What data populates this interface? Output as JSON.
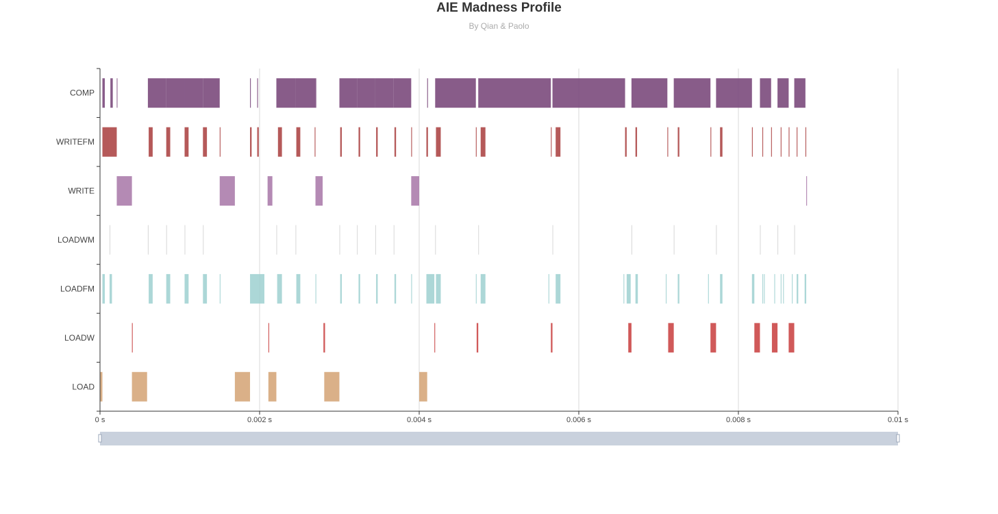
{
  "title": "AIE Madness Profile",
  "subtitle": "By Qian & Paolo",
  "chart_data": {
    "type": "timeline",
    "title": "AIE Madness Profile",
    "subtitle": "By Qian & Paolo",
    "categories": [
      "LOAD",
      "LOADW",
      "LOADFM",
      "LOADWM",
      "WRITE",
      "WRITEFM",
      "COMP"
    ],
    "x_ticks": [
      {
        "value": 0,
        "label": "0 s"
      },
      {
        "value": 0.002,
        "label": "0.002 s"
      },
      {
        "value": 0.004,
        "label": "0.004 s"
      },
      {
        "value": 0.006,
        "label": "0.006 s"
      },
      {
        "value": 0.008,
        "label": "0.008 s"
      },
      {
        "value": 0.01,
        "label": "0.01 s"
      }
    ],
    "xlim": [
      0,
      0.01
    ],
    "grid": "vertical",
    "colors": {
      "COMP": "#7b4a7c",
      "WRITEFM": "#a83c3c",
      "WRITE": "#a775a7",
      "LOADWM": "#d0d0d0",
      "LOADFM": "#9ed0d0",
      "LOADW": "#c83c3c",
      "LOAD": "#d4a273"
    },
    "series": [
      {
        "category": "COMP",
        "intervals": [
          [
            3e-05,
            6e-05
          ],
          [
            0.00013,
            0.00016
          ],
          [
            0.00021,
            0.000215
          ],
          [
            0.0006,
            0.00083
          ],
          [
            0.00083,
            0.00106
          ],
          [
            0.00106,
            0.00129
          ],
          [
            0.00129,
            0.0015
          ],
          [
            0.00188,
            0.00189
          ],
          [
            0.00197,
            0.00198
          ],
          [
            0.00221,
            0.00245
          ],
          [
            0.00245,
            0.0027
          ],
          [
            0.0027,
            0.00271
          ],
          [
            0.003,
            0.00322
          ],
          [
            0.00322,
            0.00345
          ],
          [
            0.00345,
            0.00368
          ],
          [
            0.00368,
            0.0039
          ],
          [
            0.0041,
            0.00411
          ],
          [
            0.0042,
            0.00471
          ],
          [
            0.00474,
            0.00565
          ],
          [
            0.00567,
            0.00658
          ],
          [
            0.00666,
            0.00711
          ],
          [
            0.00719,
            0.00765
          ],
          [
            0.00772,
            0.00817
          ],
          [
            0.00827,
            0.00841
          ],
          [
            0.00849,
            0.00863
          ],
          [
            0.0087,
            0.00884
          ]
        ]
      },
      {
        "category": "WRITEFM",
        "intervals": [
          [
            3e-05,
            0.00012
          ],
          [
            0.00012,
            0.00021
          ],
          [
            0.00061,
            0.00066
          ],
          [
            0.00083,
            0.00088
          ],
          [
            0.00106,
            0.00111
          ],
          [
            0.00129,
            0.00134
          ],
          [
            0.0015,
            0.00151
          ],
          [
            0.00188,
            0.0019
          ],
          [
            0.00197,
            0.00199
          ],
          [
            0.00223,
            0.00228
          ],
          [
            0.00246,
            0.00251
          ],
          [
            0.00269,
            0.0027
          ],
          [
            0.00301,
            0.00303
          ],
          [
            0.00324,
            0.00326
          ],
          [
            0.00346,
            0.00348
          ],
          [
            0.00369,
            0.00371
          ],
          [
            0.0039,
            0.00391
          ],
          [
            0.00409,
            0.00411
          ],
          [
            0.00421,
            0.00427
          ],
          [
            0.00471,
            0.00472
          ],
          [
            0.00477,
            0.00483
          ],
          [
            0.00565,
            0.00566
          ],
          [
            0.00571,
            0.00577
          ],
          [
            0.00658,
            0.0066
          ],
          [
            0.00671,
            0.00673
          ],
          [
            0.00711,
            0.00712
          ],
          [
            0.00724,
            0.00726
          ],
          [
            0.00765,
            0.00766
          ],
          [
            0.00777,
            0.0078
          ],
          [
            0.00817,
            0.00818
          ],
          [
            0.0083,
            0.00831
          ],
          [
            0.00841,
            0.00842
          ],
          [
            0.00853,
            0.00854
          ],
          [
            0.00863,
            0.00864
          ],
          [
            0.00873,
            0.00874
          ],
          [
            0.00884,
            0.00885
          ]
        ]
      },
      {
        "category": "WRITE",
        "intervals": [
          [
            0.00021,
            0.0004
          ],
          [
            0.0015,
            0.00169
          ],
          [
            0.0021,
            0.00216
          ],
          [
            0.0027,
            0.00279
          ],
          [
            0.0039,
            0.004
          ],
          [
            0.00885,
            0.00886
          ]
        ]
      },
      {
        "category": "LOADWM",
        "intervals": [
          [
            0.00012,
            0.000125
          ],
          [
            0.0006,
            0.000605
          ],
          [
            0.00083,
            0.000835
          ],
          [
            0.00106,
            0.001065
          ],
          [
            0.00129,
            0.001295
          ],
          [
            0.00221,
            0.002215
          ],
          [
            0.00245,
            0.002455
          ],
          [
            0.003,
            0.003005
          ],
          [
            0.00322,
            0.003225
          ],
          [
            0.00345,
            0.003455
          ],
          [
            0.00368,
            0.003685
          ],
          [
            0.0042,
            0.004205
          ],
          [
            0.00474,
            0.004745
          ],
          [
            0.00567,
            0.005675
          ],
          [
            0.00666,
            0.006665
          ],
          [
            0.00719,
            0.007195
          ],
          [
            0.00772,
            0.007725
          ],
          [
            0.00827,
            0.008275
          ],
          [
            0.00849,
            0.008495
          ],
          [
            0.0087,
            0.008705
          ]
        ]
      },
      {
        "category": "LOADFM",
        "intervals": [
          [
            3e-05,
            6e-05
          ],
          [
            0.00012,
            0.00015
          ],
          [
            0.00061,
            0.00066
          ],
          [
            0.00083,
            0.00088
          ],
          [
            0.00106,
            0.00111
          ],
          [
            0.00129,
            0.00134
          ],
          [
            0.0015,
            0.00151
          ],
          [
            0.00188,
            0.00206
          ],
          [
            0.00222,
            0.00228
          ],
          [
            0.00246,
            0.00251
          ],
          [
            0.0027,
            0.00271
          ],
          [
            0.00301,
            0.00303
          ],
          [
            0.00324,
            0.00326
          ],
          [
            0.00346,
            0.00348
          ],
          [
            0.00369,
            0.00371
          ],
          [
            0.0039,
            0.00391
          ],
          [
            0.00409,
            0.00419
          ],
          [
            0.00421,
            0.00427
          ],
          [
            0.00471,
            0.00472
          ],
          [
            0.00477,
            0.00483
          ],
          [
            0.00562,
            0.00563
          ],
          [
            0.00571,
            0.00577
          ],
          [
            0.00656,
            0.00657
          ],
          [
            0.0066,
            0.00665
          ],
          [
            0.00671,
            0.00674
          ],
          [
            0.00709,
            0.0071
          ],
          [
            0.00724,
            0.00726
          ],
          [
            0.00762,
            0.00763
          ],
          [
            0.00777,
            0.0078
          ],
          [
            0.00817,
            0.0082
          ],
          [
            0.0083,
            0.00831
          ],
          [
            0.00832,
            0.00833
          ],
          [
            0.00845,
            0.00846
          ],
          [
            0.00853,
            0.00854
          ],
          [
            0.00856,
            0.00857
          ],
          [
            0.00867,
            0.00868
          ],
          [
            0.00873,
            0.00875
          ],
          [
            0.00883,
            0.00885
          ]
        ]
      },
      {
        "category": "LOADW",
        "intervals": [
          [
            0.0004,
            0.00041
          ],
          [
            0.00211,
            0.00212
          ],
          [
            0.0028,
            0.00282
          ],
          [
            0.00419,
            0.0042
          ],
          [
            0.00472,
            0.00474
          ],
          [
            0.00565,
            0.00567
          ],
          [
            0.00662,
            0.00666
          ],
          [
            0.00712,
            0.00719
          ],
          [
            0.00765,
            0.00772
          ],
          [
            0.0082,
            0.00827
          ],
          [
            0.00842,
            0.00849
          ],
          [
            0.00863,
            0.0087
          ]
        ]
      },
      {
        "category": "LOAD",
        "intervals": [
          [
            0.0,
            3e-05
          ],
          [
            0.0004,
            0.00059
          ],
          [
            0.00169,
            0.00188
          ],
          [
            0.00211,
            0.00221
          ],
          [
            0.00281,
            0.003
          ],
          [
            0.004,
            0.0041
          ]
        ]
      }
    ]
  }
}
